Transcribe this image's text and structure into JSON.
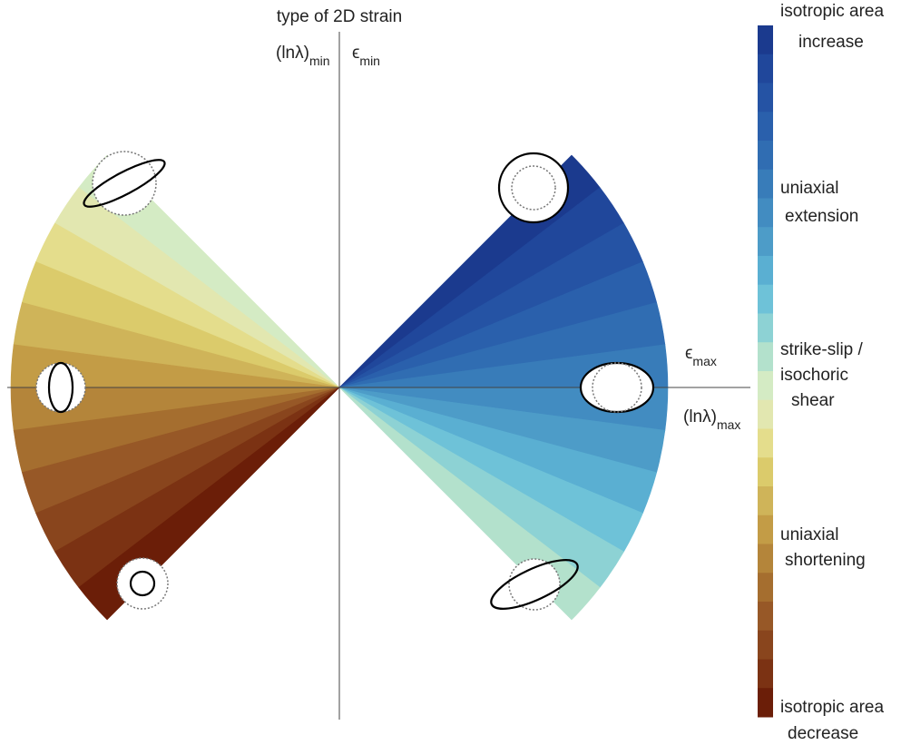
{
  "title": "type of 2D strain",
  "axis_labels": {
    "ln_min": {
      "base": "(lnλ)",
      "sub": "min"
    },
    "eps_min": {
      "base": "ϵ",
      "sub": "min"
    },
    "eps_max": {
      "base": "ϵ",
      "sub": "max"
    },
    "ln_max": {
      "base": "(lnλ)",
      "sub": "max"
    }
  },
  "colorbar_labels": [
    [
      "isotropic area",
      "increase"
    ],
    [
      "uniaxial",
      "extension"
    ],
    [
      "strike-slip /",
      "isochoric",
      "shear"
    ],
    [
      "uniaxial",
      "shortening"
    ],
    [
      "isotropic area",
      "decrease"
    ]
  ]
}
